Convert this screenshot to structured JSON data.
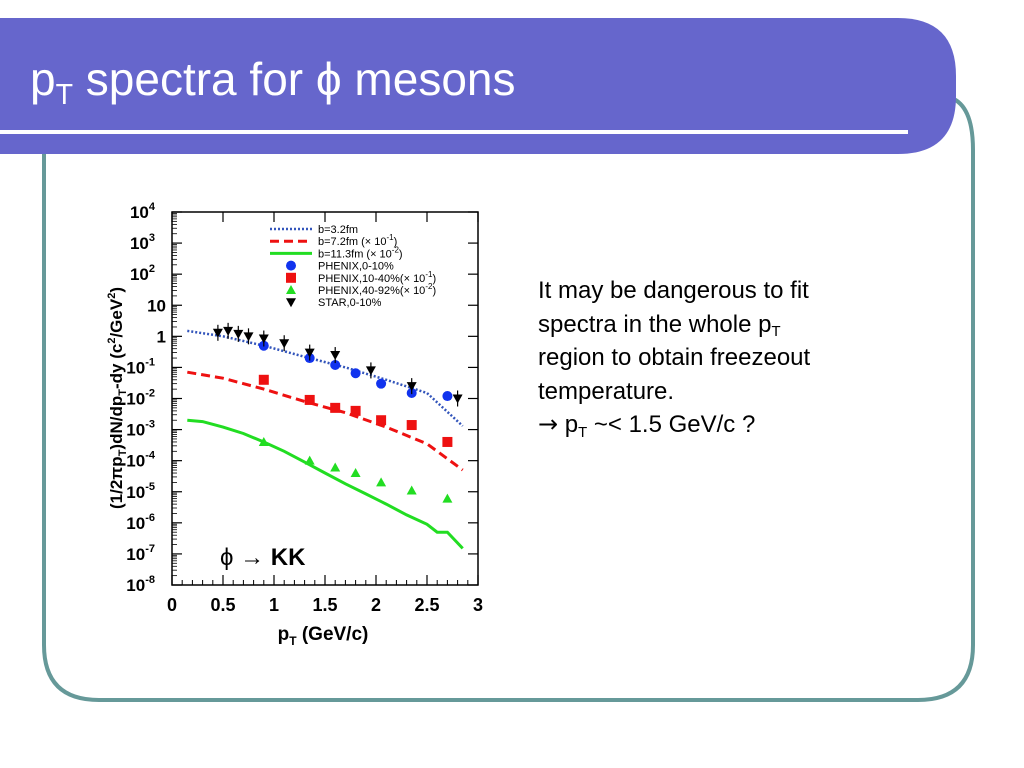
{
  "slide": {
    "title": {
      "main": "p",
      "sub": "T",
      "rest": " spectra for ",
      "symbol": "ϕ",
      "tail": " mesons"
    },
    "body": {
      "line1": "It may be dangerous to fit",
      "line2_main": "spectra in the whole p",
      "line2_sub": "T",
      "line3": "region to obtain freezeout",
      "line4": "temperature.",
      "bullet_arrow": "→",
      "bullet_p": " p",
      "bullet_sub": "T",
      "bullet_rest": " ~< 1.5 GeV/c ?"
    },
    "colors": {
      "header": "#6666cc",
      "frame": "#669999",
      "header_line": "#ffffff"
    }
  },
  "chart_data": {
    "type": "scatter",
    "xlabel": {
      "main": "p",
      "sub": "T",
      "rest": " (GeV/c)"
    },
    "ylabel": {
      "a": "(1/2πp",
      "a_sub": "T",
      "b": ")dN/dp",
      "b_sub": "T",
      "c": "-dy (c",
      "c_sup": "2",
      "d": "/GeV",
      "d_sup": "2",
      "e": ")"
    },
    "xlim": [
      0,
      3
    ],
    "ylim": [
      1e-08,
      10000.0
    ],
    "yscale": "log",
    "xticks": [
      0,
      0.5,
      1,
      1.5,
      2,
      2.5,
      3
    ],
    "xtick_labels": [
      "0",
      "0.5",
      "1",
      "1.5",
      "2",
      "2.5",
      "3"
    ],
    "yticks": [
      {
        "exp": -8,
        "base": "10",
        "sup": "-8"
      },
      {
        "exp": -7,
        "base": "10",
        "sup": "-7"
      },
      {
        "exp": -6,
        "base": "10",
        "sup": "-6"
      },
      {
        "exp": -5,
        "base": "10",
        "sup": "-5"
      },
      {
        "exp": -4,
        "base": "10",
        "sup": "-4"
      },
      {
        "exp": -3,
        "base": "10",
        "sup": "-3"
      },
      {
        "exp": -2,
        "base": "10",
        "sup": "-2"
      },
      {
        "exp": -1,
        "base": "10",
        "sup": "-1"
      },
      {
        "exp": 0,
        "base": "1",
        "sup": ""
      },
      {
        "exp": 1,
        "base": "10",
        "sup": ""
      },
      {
        "exp": 2,
        "base": "10",
        "sup": "2"
      },
      {
        "exp": 3,
        "base": "10",
        "sup": "3"
      },
      {
        "exp": 4,
        "base": "10",
        "sup": "4"
      }
    ],
    "annotation": {
      "symbol": "ϕ",
      "arrow": " → ",
      "text": "KK"
    },
    "legend_position": "top-right",
    "legend": [
      {
        "kind": "line",
        "style": "dotted",
        "color": "#3355bb",
        "label": "b=3.2fm",
        "sup": "",
        "tail": ""
      },
      {
        "kind": "line",
        "style": "dashed",
        "color": "#ee1111",
        "label": "b=7.2fm (× 10",
        "sup": "-1",
        "tail": ")"
      },
      {
        "kind": "line",
        "style": "solid",
        "color": "#22dd22",
        "label": "b=11.3fm (× 10",
        "sup": "-2",
        "tail": ")"
      },
      {
        "kind": "marker",
        "marker": "circle",
        "color": "#1133ee",
        "label": "PHENIX,0-10%",
        "sup": "",
        "tail": ""
      },
      {
        "kind": "marker",
        "marker": "square",
        "color": "#ee1111",
        "label": "PHENIX,10-40%(× 10",
        "sup": "-1",
        "tail": ")"
      },
      {
        "kind": "marker",
        "marker": "triangle-up",
        "color": "#22dd22",
        "label": "PHENIX,40-92%(× 10",
        "sup": "-2",
        "tail": ")"
      },
      {
        "kind": "marker",
        "marker": "triangle-down",
        "color": "#000000",
        "label": "STAR,0-10%",
        "sup": "",
        "tail": ""
      }
    ],
    "curves": [
      {
        "name": "b=3.2fm",
        "style": "dotted",
        "color": "#3355bb",
        "x": [
          0.15,
          0.5,
          0.9,
          1.3,
          1.7,
          2.1,
          2.5,
          2.85
        ],
        "y": [
          1.5,
          1.0,
          0.5,
          0.22,
          0.1,
          0.04,
          0.015,
          0.0013
        ]
      },
      {
        "name": "b=7.2fm (× 10^-1)",
        "style": "dashed",
        "color": "#ee1111",
        "x": [
          0.15,
          0.5,
          0.9,
          1.3,
          1.7,
          2.1,
          2.5,
          2.85
        ],
        "y": [
          0.07,
          0.045,
          0.02,
          0.008,
          0.0035,
          0.0012,
          0.00035,
          5e-05
        ]
      },
      {
        "name": "b=11.3fm (× 10^-2)",
        "style": "solid",
        "color": "#22dd22",
        "x": [
          0.15,
          0.3,
          0.5,
          0.7,
          0.9,
          1.1,
          1.3,
          1.5,
          1.7,
          1.9,
          2.1,
          2.3,
          2.5,
          2.6,
          2.7,
          2.85
        ],
        "y": [
          0.002,
          0.0018,
          0.0012,
          0.00075,
          0.0004,
          0.0002,
          9e-05,
          4e-05,
          1.8e-05,
          8.5e-06,
          4e-06,
          1.8e-06,
          9e-07,
          5e-07,
          5e-07,
          1.5e-07
        ]
      }
    ],
    "series": [
      {
        "name": "PHENIX,0-10%",
        "marker": "circle",
        "color": "#1133ee",
        "x": [
          0.9,
          1.35,
          1.6,
          1.8,
          2.05,
          2.35,
          2.7
        ],
        "y": [
          0.5,
          0.2,
          0.12,
          0.065,
          0.03,
          0.015,
          0.012
        ]
      },
      {
        "name": "PHENIX,10-40%(× 10^-1)",
        "marker": "square",
        "color": "#ee1111",
        "x": [
          0.9,
          1.35,
          1.6,
          1.8,
          2.05,
          2.35,
          2.7
        ],
        "y": [
          0.04,
          0.009,
          0.005,
          0.004,
          0.002,
          0.0014,
          0.0004
        ]
      },
      {
        "name": "PHENIX,40-92%(× 10^-2)",
        "marker": "triangle-up",
        "color": "#22dd22",
        "x": [
          0.9,
          1.35,
          1.6,
          1.8,
          2.05,
          2.35,
          2.7
        ],
        "y": [
          0.0004,
          0.0001,
          6e-05,
          4e-05,
          2e-05,
          1.1e-05,
          6e-06
        ]
      },
      {
        "name": "STAR,0-10%",
        "marker": "triangle-down",
        "color": "#000000",
        "x": [
          0.45,
          0.55,
          0.65,
          0.75,
          0.9,
          1.1,
          1.35,
          1.6,
          1.95,
          2.35,
          2.8
        ],
        "y": [
          1.3,
          1.5,
          1.2,
          1.0,
          0.85,
          0.6,
          0.3,
          0.25,
          0.08,
          0.025,
          0.01
        ]
      }
    ]
  }
}
